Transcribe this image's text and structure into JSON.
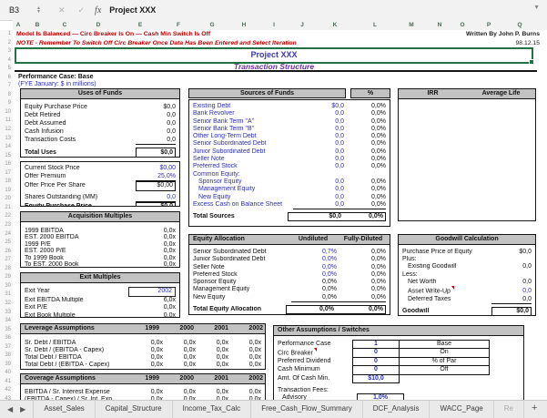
{
  "colors": {
    "accent_red": "#b80000",
    "input_blue": "#2e2eb4",
    "title_blue": "#3b3aad",
    "subtitle_purple": "#6a2fa0",
    "header_gray": "#c2c2c2",
    "selection_green": "#217346"
  },
  "toolbar": {
    "name_box": "B3",
    "fx_label": "fx",
    "formula_value": "Project XXX"
  },
  "grid": {
    "column_letters": [
      "A",
      "B",
      "C",
      "D",
      "E",
      "F",
      "G",
      "H",
      "I",
      "J",
      "K",
      "L",
      "M",
      "N",
      "O",
      "P",
      "Q"
    ],
    "row_numbers_max": 44
  },
  "notices": {
    "line1": "Model Is Balanced — Circ Breaker Is On — Cash Min Switch Is Off",
    "line2": "NOTE - Remember To Switch Off Circ Breaker Once Data Has Been Entered and Select Iteration",
    "author": "Written By John P. Burns",
    "date": "98.12.15"
  },
  "title_block": {
    "title": "Project XXX",
    "subtitle": "Transaction Structure",
    "case_line": "Performance Case: Base",
    "fye_line": "(FYE January: $ in millions)"
  },
  "uses_of_funds": {
    "title": "Uses of Funds",
    "rows": [
      {
        "label": "Equity Purchase Price",
        "cells": [
          {
            "t": "$0,0"
          }
        ]
      },
      {
        "label": "Debt Retired",
        "cells": [
          {
            "t": "0,0"
          }
        ]
      },
      {
        "label": "Debt Assumed",
        "cells": [
          {
            "t": "0,0"
          }
        ]
      },
      {
        "label": "Cash Infusion",
        "cells": [
          {
            "t": "0,0"
          }
        ]
      },
      {
        "label": "Transaction Costs",
        "cells": [
          {
            "t": "0,0",
            "uline": true
          }
        ]
      },
      {
        "spacer": true
      },
      {
        "label": "Total Uses",
        "bold": true,
        "cells": [
          {
            "t": "$0,0",
            "box": true
          }
        ]
      }
    ]
  },
  "offer_block": {
    "rows": [
      {
        "label": "Current Stock Price",
        "cells": [
          {
            "t": "$0,00",
            "blue": true
          }
        ]
      },
      {
        "label": "Offer Premium",
        "cells": [
          {
            "t": "25,0%",
            "blue": true,
            "uline": true
          }
        ]
      },
      {
        "label": "Offer Price Per Share",
        "cells": [
          {
            "t": "$0,00",
            "box": true
          }
        ]
      },
      {
        "spacer": true
      },
      {
        "label": "Shares Outstanding (MM)",
        "cells": [
          {
            "t": "0,0",
            "blue": true,
            "uline": true
          }
        ]
      },
      {
        "label": "Equity Purchase Price",
        "bold": true,
        "cells": [
          {
            "t": "$0,0",
            "box": true
          }
        ]
      }
    ]
  },
  "acquisition_multiples": {
    "title": "Acquisition Multiples",
    "rows": [
      {
        "label": "1999 EBITDA",
        "cells": [
          {
            "t": "0,0x"
          }
        ]
      },
      {
        "label": "EST. 2000 EBITDA",
        "cells": [
          {
            "t": "0,0x"
          }
        ]
      },
      {
        "label": "1999 P/E",
        "cells": [
          {
            "t": "0,0x"
          }
        ]
      },
      {
        "label": "EST. 2000 P/E",
        "cells": [
          {
            "t": "0,0x"
          }
        ]
      },
      {
        "label": "To 1999 Book",
        "cells": [
          {
            "t": "0,0x"
          }
        ]
      },
      {
        "label": "To EST. 2000 Book",
        "cells": [
          {
            "t": "0,0x"
          }
        ]
      }
    ]
  },
  "exit_multiples": {
    "title": "Exit Multiples",
    "rows": [
      {
        "label": "Exit Year",
        "cells": [
          {
            "t": "2002",
            "blue": true,
            "ibox": true
          }
        ]
      },
      {
        "label": "Exit EBITDA Multiple",
        "cells": [
          {
            "t": "6,0x"
          }
        ]
      },
      {
        "label": "Exit P/E",
        "cells": [
          {
            "t": "0,0x"
          }
        ]
      },
      {
        "label": "Exit Book Multiple",
        "cells": [
          {
            "t": "0,0x"
          }
        ]
      }
    ]
  },
  "leverage_assumptions": {
    "title": "Leverage Assumptions",
    "years": [
      "1999",
      "2000",
      "2001",
      "2002"
    ],
    "rows": [
      {
        "spacer": true
      },
      {
        "label": "Sr. Debt / EBITDA",
        "cells": [
          {
            "t": "0,0x"
          },
          {
            "t": "0,0x"
          },
          {
            "t": "0,0x"
          },
          {
            "t": "0,0x"
          }
        ]
      },
      {
        "label": "Sr. Debt / (EBITDA - Capex)",
        "cells": [
          {
            "t": "0,0x"
          },
          {
            "t": "0,0x"
          },
          {
            "t": "0,0x"
          },
          {
            "t": "0,0x"
          }
        ]
      },
      {
        "label": "Total Debt / EBITDA",
        "cells": [
          {
            "t": "0,0x"
          },
          {
            "t": "0,0x"
          },
          {
            "t": "0,0x"
          },
          {
            "t": "0,0x"
          }
        ]
      },
      {
        "label": "Total Debt / (EBITDA - Capex)",
        "cells": [
          {
            "t": "0,0x"
          },
          {
            "t": "0,0x"
          },
          {
            "t": "0,0x"
          },
          {
            "t": "0,0x"
          }
        ]
      }
    ]
  },
  "coverage_assumptions": {
    "title": "Coverage Assumptions",
    "years": [
      "1999",
      "2000",
      "2001",
      "2002"
    ],
    "rows": [
      {
        "spacer": true
      },
      {
        "label": "EBITDA / Sr. Interest Expense",
        "cells": [
          {
            "t": "0,0x"
          },
          {
            "t": "0,0x"
          },
          {
            "t": "0,0x"
          },
          {
            "t": "0,0x"
          }
        ]
      },
      {
        "label": "(EBITDA - Capex) / Sr. Int. Exp.",
        "cells": [
          {
            "t": "0,0x"
          },
          {
            "t": "0,0x"
          },
          {
            "t": "0,0x"
          },
          {
            "t": "0,0x"
          }
        ]
      }
    ]
  },
  "sources_of_funds": {
    "title": "Sources of Funds",
    "pct_header": "%",
    "rows": [
      {
        "label": "Existing Debt",
        "cells": [
          {
            "t": "$0,0",
            "blue": true
          },
          {
            "t": "0,0%"
          }
        ]
      },
      {
        "label": "Bank Revolver",
        "cells": [
          {
            "t": "0,0",
            "blue": true
          },
          {
            "t": "0,0%"
          }
        ]
      },
      {
        "label": "Senior Bank Term \"A\"",
        "cells": [
          {
            "t": "0,0",
            "blue": true
          },
          {
            "t": "0,0%"
          }
        ]
      },
      {
        "label": "Senior Bank Term \"B\"",
        "cells": [
          {
            "t": "0,0",
            "blue": true
          },
          {
            "t": "0,0%"
          }
        ]
      },
      {
        "label": "Other Long-Term Debt",
        "cells": [
          {
            "t": "0,0",
            "blue": true
          },
          {
            "t": "0,0%"
          }
        ]
      },
      {
        "label": "Senior Subordinated Debt",
        "cells": [
          {
            "t": "0,0",
            "blue": true
          },
          {
            "t": "0,0%"
          }
        ]
      },
      {
        "label": "Junior Subordinated Debt",
        "cells": [
          {
            "t": "0,0",
            "blue": true
          },
          {
            "t": "0,0%"
          }
        ]
      },
      {
        "label": "Seller Note",
        "cells": [
          {
            "t": "0,0",
            "blue": true
          },
          {
            "t": "0,0%"
          }
        ]
      },
      {
        "label": "Preferred Stock",
        "cells": [
          {
            "t": "0,0",
            "blue": true
          },
          {
            "t": "0,0%"
          }
        ]
      },
      {
        "label": "Common Equity:",
        "cells": []
      },
      {
        "label": "Sponsor Equity",
        "indent": true,
        "cells": [
          {
            "t": "0,0",
            "blue": true
          },
          {
            "t": "0,0%"
          }
        ]
      },
      {
        "label": "Management Equity",
        "indent": true,
        "cells": [
          {
            "t": "0,0",
            "blue": true
          },
          {
            "t": "0,0%"
          }
        ]
      },
      {
        "label": "New Equity",
        "indent": true,
        "cells": [
          {
            "t": "0,0",
            "blue": true
          },
          {
            "t": "0,0%"
          }
        ]
      },
      {
        "label": "Excess Cash on Balance Sheet",
        "cells": [
          {
            "t": "0,0",
            "blue": true,
            "uline": true
          },
          {
            "t": "0,0%",
            "uline": true
          }
        ]
      },
      {
        "spacer": true
      },
      {
        "label": "Total Sources",
        "bold": true,
        "boxwrap": true,
        "cells": [
          {
            "t": "$0,0"
          },
          {
            "t": "0,0%"
          }
        ]
      }
    ]
  },
  "equity_allocation": {
    "title": "Equity Allocation",
    "col_headers": [
      "Undiluted",
      "Fully-Diluted"
    ],
    "rows": [
      {
        "label": "Senior Subordinated Debt",
        "cells": [
          {
            "t": "0,7%",
            "blue": true
          },
          {
            "t": "0,0%"
          }
        ]
      },
      {
        "label": "Junior Subordinated Debt",
        "cells": [
          {
            "t": "0,0%",
            "blue": true
          },
          {
            "t": "0,0%"
          }
        ]
      },
      {
        "label": "Seller Note",
        "cells": [
          {
            "t": "0,0%",
            "blue": true
          },
          {
            "t": "0,0%"
          }
        ]
      },
      {
        "label": "Preferred Stock",
        "cells": [
          {
            "t": "0,0%",
            "blue": true
          },
          {
            "t": "0,0%"
          }
        ]
      },
      {
        "label": "Sponsor Equity",
        "cells": [
          {
            "t": "0,0%"
          },
          {
            "t": "0,0%"
          }
        ]
      },
      {
        "label": "Management Equity",
        "cells": [
          {
            "t": "0,0%"
          },
          {
            "t": "0,0%"
          }
        ]
      },
      {
        "label": "New Equity",
        "cells": [
          {
            "t": "0,0%",
            "uline": true
          },
          {
            "t": "0,0%",
            "uline": true
          }
        ]
      },
      {
        "spacer": true
      },
      {
        "label": "Total Equity Allocation",
        "bold": true,
        "boxwrap": true,
        "cells": [
          {
            "t": "0,0%"
          },
          {
            "t": "0,0%"
          }
        ]
      }
    ]
  },
  "irr_box": {
    "left": "IRR",
    "right": "Average Life"
  },
  "goodwill": {
    "title": "Goodwill Calculation",
    "rows": [
      {
        "label": "Purchase Price of Equity",
        "cells": [
          {
            "t": "$0,0"
          }
        ]
      },
      {
        "label": "Plus:",
        "cells": []
      },
      {
        "label": "Existing Goodwill",
        "indent": true,
        "cells": [
          {
            "t": "0,0"
          }
        ]
      },
      {
        "label": "Less:",
        "cells": []
      },
      {
        "label": "Net Worth",
        "indent": true,
        "cells": [
          {
            "t": "0,0"
          }
        ]
      },
      {
        "label": "Asset Write-Up",
        "indent": true,
        "marker": true,
        "cells": [
          {
            "t": "0,0",
            "blue": true
          }
        ]
      },
      {
        "label": "Deferred Taxes",
        "indent": true,
        "cells": [
          {
            "t": "0,0",
            "uline": true
          }
        ]
      },
      {
        "spacer": true
      },
      {
        "label": "Goodwill",
        "bold": true,
        "cells": [
          {
            "t": "$0,0",
            "box": true
          }
        ]
      }
    ]
  },
  "other_assumptions": {
    "title": "Other Assumptions / Switches",
    "rows": [
      {
        "label": "Performance Case",
        "value": "1",
        "status": "Base"
      },
      {
        "label": "Circ Breaker",
        "marker": true,
        "value": "0",
        "status": "On"
      },
      {
        "label": "Preferred Dividend",
        "value": "0",
        "status": "% of Par"
      },
      {
        "label": "Cash Minimum",
        "value": "0",
        "status": "Off"
      },
      {
        "label": "Amt. Of Cash Min.",
        "value": "$10,0"
      }
    ],
    "fees_label": "Transaction Fees:",
    "fees": [
      {
        "label": "Advisory",
        "value": "1,0%"
      },
      {
        "label": "Financing",
        "value": "3,0%"
      }
    ]
  },
  "sheet_tabs": {
    "tabs": [
      "Asset_Sales",
      "Capital_Structure",
      "Income_Tax_Calc",
      "Free_Cash_Flow_Summary",
      "DCF_Analysis",
      "WACC_Page",
      "Re"
    ],
    "add_label": "+"
  }
}
